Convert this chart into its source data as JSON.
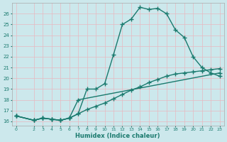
{
  "xlabel": "Humidex (Indice chaleur)",
  "bg_color": "#cce8ec",
  "line_color": "#1a7a6e",
  "markersize": 2.5,
  "linewidth": 1.0,
  "xlim": [
    -0.5,
    23.5
  ],
  "ylim": [
    15.6,
    27.0
  ],
  "xticks": [
    0,
    2,
    3,
    4,
    5,
    6,
    7,
    8,
    9,
    10,
    11,
    12,
    13,
    14,
    15,
    16,
    17,
    18,
    19,
    20,
    21,
    22,
    23
  ],
  "yticks": [
    16,
    17,
    18,
    19,
    20,
    21,
    22,
    23,
    24,
    25,
    26
  ],
  "line1_x": [
    0,
    2,
    3,
    4,
    5,
    6,
    7,
    8,
    9,
    10,
    11,
    12,
    13,
    14,
    15,
    16,
    17,
    18,
    19,
    20,
    21,
    22,
    23
  ],
  "line1_y": [
    16.5,
    16.1,
    16.3,
    16.2,
    16.1,
    16.3,
    16.7,
    19.0,
    19.0,
    19.5,
    22.2,
    25.0,
    25.5,
    26.6,
    26.4,
    26.5,
    26.0,
    24.5,
    23.8,
    22.0,
    21.0,
    20.5,
    20.2
  ],
  "line2_x": [
    0,
    2,
    3,
    4,
    5,
    6,
    7,
    23
  ],
  "line2_y": [
    16.5,
    16.1,
    16.3,
    16.2,
    16.1,
    16.3,
    18.0,
    20.5
  ],
  "line3_x": [
    0,
    2,
    3,
    4,
    5,
    6,
    7,
    8,
    9,
    10,
    11,
    12,
    13,
    14,
    15,
    16,
    17,
    18,
    19,
    20,
    21,
    22,
    23
  ],
  "line3_y": [
    16.5,
    16.1,
    16.3,
    16.2,
    16.1,
    16.3,
    16.7,
    17.1,
    17.4,
    17.7,
    18.1,
    18.5,
    18.9,
    19.2,
    19.6,
    19.9,
    20.2,
    20.4,
    20.5,
    20.6,
    20.7,
    20.8,
    20.9
  ]
}
